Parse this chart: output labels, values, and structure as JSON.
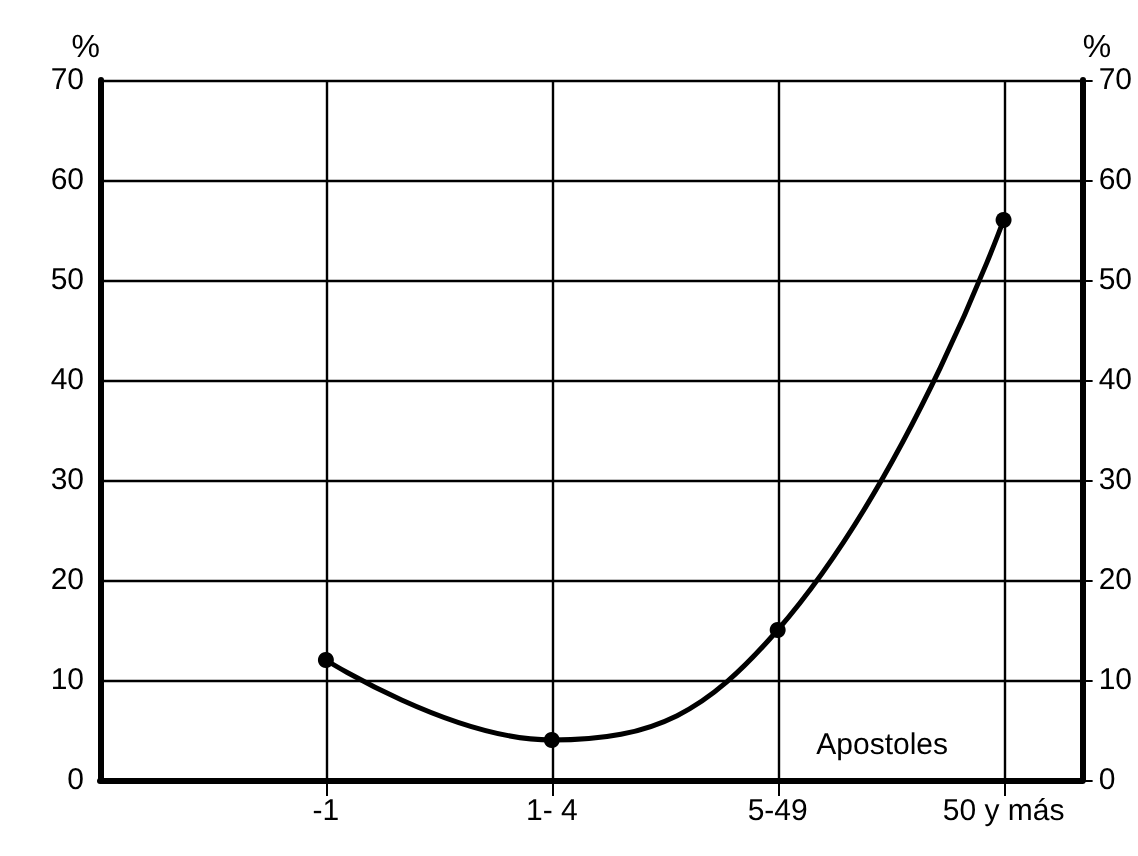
{
  "chart_data": {
    "type": "line",
    "xlabel": "Apostoles",
    "ylabel": "%",
    "y2label": "%",
    "categories": [
      "-1",
      "1- 4",
      "5-49",
      "50 y más"
    ],
    "series": [
      {
        "color": "#000000",
        "values": [
          12,
          4,
          15,
          56
        ]
      }
    ],
    "ylim": [
      0,
      70
    ],
    "yticks": [
      0,
      10,
      20,
      30,
      40,
      50,
      60,
      70
    ],
    "y2lim": [
      0,
      70
    ],
    "y2ticks": [
      0,
      10,
      20,
      30,
      40,
      50,
      60,
      70
    ],
    "grid": true,
    "marker": "circle",
    "line_style": "solid"
  }
}
